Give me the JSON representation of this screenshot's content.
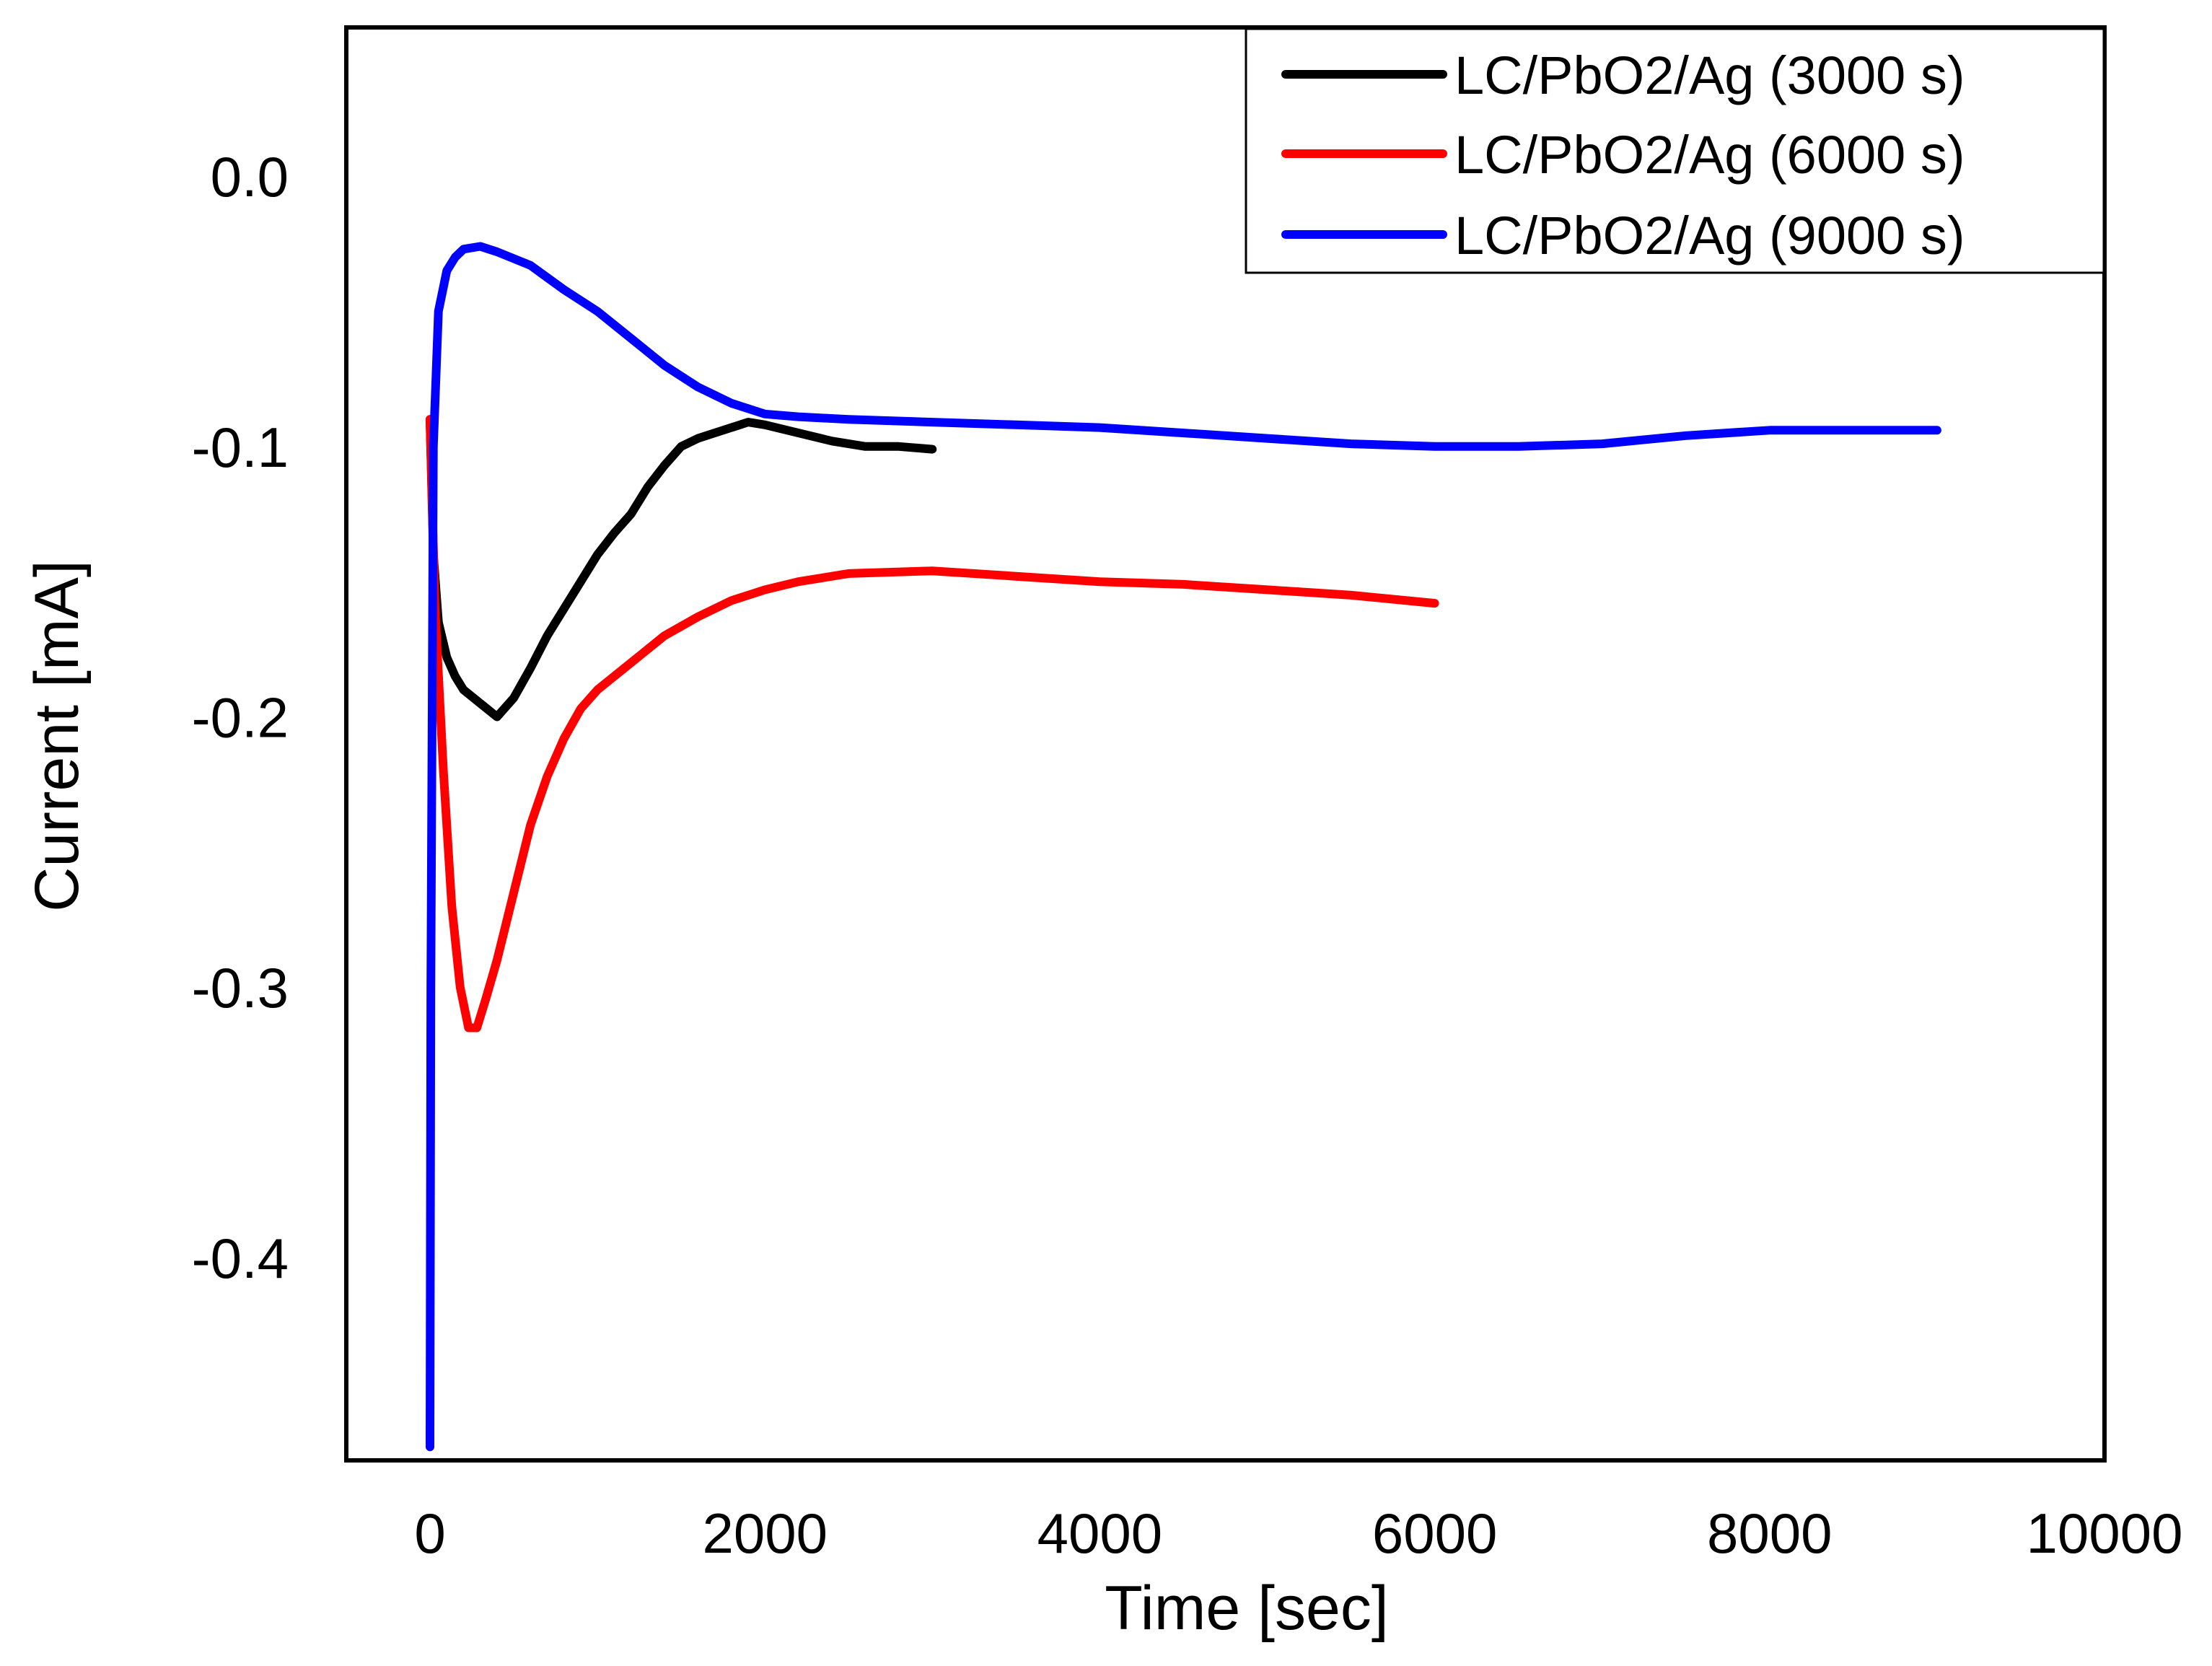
{
  "chart_data": {
    "type": "line",
    "title": "",
    "xlabel": "Time [sec]",
    "ylabel": "Current [mA]",
    "xlim": [
      -500,
      10000
    ],
    "ylim": [
      -0.475,
      0.055
    ],
    "xticks": [
      0,
      2000,
      4000,
      6000,
      8000,
      10000
    ],
    "xtick_labels": [
      "0",
      "2000",
      "4000",
      "6000",
      "8000",
      "10000"
    ],
    "yticks": [
      0.0,
      -0.1,
      -0.2,
      -0.3,
      -0.4
    ],
    "ytick_labels": [
      "0.0",
      "-0.1",
      "-0.2",
      "-0.3",
      "-0.4"
    ],
    "grid": false,
    "legend_position": "top-right",
    "series": [
      {
        "name": "LC/PbO2/Ag (3000 s)",
        "color": "#000000",
        "x": [
          0,
          20,
          50,
          100,
          150,
          200,
          300,
          400,
          500,
          600,
          700,
          800,
          900,
          1000,
          1100,
          1200,
          1300,
          1400,
          1500,
          1600,
          1700,
          1800,
          1900,
          2000,
          2200,
          2400,
          2600,
          2800,
          3000
        ],
        "y": [
          -0.09,
          -0.14,
          -0.165,
          -0.178,
          -0.185,
          -0.19,
          -0.195,
          -0.2,
          -0.193,
          -0.182,
          -0.17,
          -0.16,
          -0.15,
          -0.14,
          -0.132,
          -0.125,
          -0.115,
          -0.107,
          -0.1,
          -0.097,
          -0.095,
          -0.093,
          -0.091,
          -0.092,
          -0.095,
          -0.098,
          -0.1,
          -0.1,
          -0.101
        ]
      },
      {
        "name": "LC/PbO2/Ag (6000 s)",
        "color": "#ff0000",
        "x": [
          0,
          30,
          80,
          130,
          180,
          230,
          280,
          330,
          400,
          500,
          600,
          700,
          800,
          900,
          1000,
          1200,
          1400,
          1600,
          1800,
          2000,
          2200,
          2500,
          3000,
          3500,
          4000,
          4500,
          5000,
          5500,
          6000
        ],
        "y": [
          -0.09,
          -0.16,
          -0.22,
          -0.27,
          -0.3,
          -0.315,
          -0.315,
          -0.305,
          -0.29,
          -0.265,
          -0.24,
          -0.222,
          -0.208,
          -0.197,
          -0.19,
          -0.18,
          -0.17,
          -0.163,
          -0.157,
          -0.153,
          -0.15,
          -0.147,
          -0.146,
          -0.148,
          -0.15,
          -0.151,
          -0.153,
          -0.155,
          -0.158
        ]
      },
      {
        "name": "LC/PbO2/Ag (9000 s)",
        "color": "#0000ff",
        "x": [
          0,
          5,
          20,
          50,
          100,
          150,
          200,
          300,
          400,
          600,
          800,
          1000,
          1200,
          1400,
          1600,
          1800,
          2000,
          2200,
          2500,
          3000,
          3500,
          4000,
          4500,
          5000,
          5500,
          6000,
          6500,
          7000,
          7500,
          8000,
          9000
        ],
        "y": [
          -0.47,
          -0.3,
          -0.1,
          -0.05,
          -0.035,
          -0.03,
          -0.027,
          -0.026,
          -0.028,
          -0.033,
          -0.042,
          -0.05,
          -0.06,
          -0.07,
          -0.078,
          -0.084,
          -0.088,
          -0.089,
          -0.09,
          -0.091,
          -0.092,
          -0.093,
          -0.095,
          -0.097,
          -0.099,
          -0.1,
          -0.1,
          -0.099,
          -0.096,
          -0.094,
          -0.094
        ]
      }
    ]
  }
}
